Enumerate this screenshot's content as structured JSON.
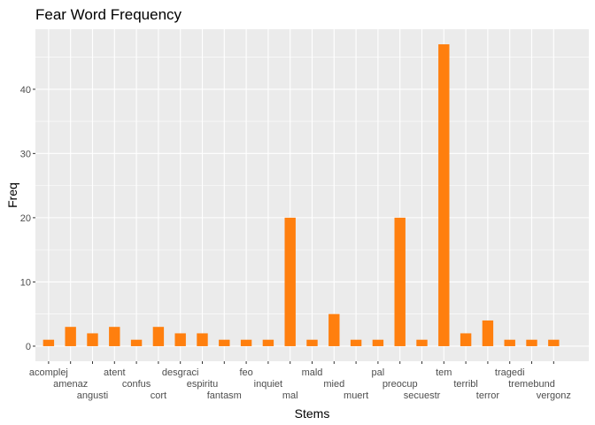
{
  "chart_data": {
    "type": "bar",
    "title": "Fear Word Frequency",
    "xlabel": "Stems",
    "ylabel": "Freq",
    "categories": [
      "acomplej",
      "amenaz",
      "angusti",
      "atent",
      "confus",
      "cort",
      "desgraci",
      "espiritu",
      "fantasm",
      "feo",
      "inquiet",
      "mal",
      "mald",
      "mied",
      "muert",
      "pal",
      "preocup",
      "secuestr",
      "tem",
      "terribl",
      "terror",
      "tragedi",
      "tremebund",
      "vergonz"
    ],
    "values": [
      1,
      3,
      2,
      3,
      1,
      3,
      2,
      2,
      1,
      1,
      1,
      20,
      1,
      5,
      1,
      1,
      20,
      1,
      47,
      2,
      4,
      1,
      1,
      1
    ],
    "yticks": [
      0,
      10,
      20,
      30,
      40
    ],
    "ylim": [
      -2.35,
      49.35
    ],
    "grid": true,
    "legend": "none",
    "colors": {
      "bar": "#FF7F0E",
      "panel": "#EBEBEB",
      "grid": "#FFFFFF"
    }
  }
}
